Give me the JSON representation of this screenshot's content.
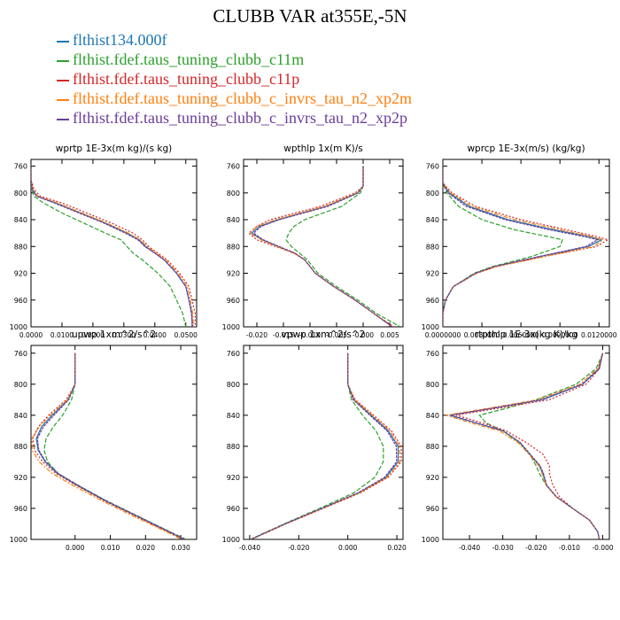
{
  "title": "CLUBB VAR at355E,-5N",
  "legend": [
    {
      "label": "flthist134.000f",
      "color": "#1f77b4"
    },
    {
      "label": "flthist.fdef.taus_tuning_clubb_c11m",
      "color": "#2ca02c"
    },
    {
      "label": "flthist.fdef.taus_tuning_clubb_c11p",
      "color": "#d62728"
    },
    {
      "label": "flthist.fdef.taus_tuning_clubb_c_invrs_tau_n2_xp2m",
      "color": "#ff7f0e"
    },
    {
      "label": "flthist.fdef.taus_tuning_clubb_c_invrs_tau_n2_xp2p",
      "color": "#6a3d9a"
    }
  ],
  "chart_data": [
    {
      "type": "line",
      "title": "wprtp  1E-3x(m kg)/(s kg)",
      "xlim": [
        0.0,
        0.0535
      ],
      "ylim": [
        750,
        1000
      ],
      "x_ticks": [
        0.0,
        0.01,
        0.02,
        0.03,
        0.04,
        0.05
      ],
      "x_tick_labels": [
        "0.0000",
        "0.0100",
        "0.0200",
        "0.0300",
        "0.0400",
        "0.0500"
      ],
      "y_ticks": [
        760,
        800,
        840,
        880,
        920,
        960,
        1000
      ],
      "y_tick_labels": [
        "760",
        "800",
        "840",
        "880",
        "920",
        "960",
        "1000"
      ],
      "y": [
        760,
        780,
        795,
        805,
        815,
        830,
        845,
        860,
        870,
        880,
        890,
        900,
        920,
        940,
        960,
        980,
        1000
      ],
      "series": [
        {
          "x": [
            0.0,
            0.0,
            0.0005,
            0.002,
            0.008,
            0.016,
            0.024,
            0.031,
            0.035,
            0.037,
            0.04,
            0.043,
            0.047,
            0.05,
            0.051,
            0.052,
            0.052
          ]
        },
        {
          "x": [
            0.0,
            0.0,
            0.0002,
            0.001,
            0.004,
            0.01,
            0.017,
            0.024,
            0.029,
            0.031,
            0.033,
            0.036,
            0.041,
            0.045,
            0.047,
            0.049,
            0.05
          ]
        },
        {
          "x": [
            0.0,
            0.0,
            0.001,
            0.003,
            0.01,
            0.018,
            0.026,
            0.033,
            0.036,
            0.038,
            0.041,
            0.044,
            0.048,
            0.051,
            0.052,
            0.053,
            0.053
          ]
        },
        {
          "x": [
            0.0,
            0.0,
            0.0006,
            0.0022,
            0.0085,
            0.0165,
            0.0245,
            0.0315,
            0.0352,
            0.0375,
            0.0405,
            0.0435,
            0.0475,
            0.0505,
            0.0515,
            0.0522,
            0.0525
          ]
        },
        {
          "x": [
            0.0,
            0.0,
            0.0004,
            0.0018,
            0.0075,
            0.0155,
            0.0235,
            0.0305,
            0.0345,
            0.0368,
            0.04,
            0.043,
            0.047,
            0.05,
            0.051,
            0.0518,
            0.0522
          ]
        }
      ]
    },
    {
      "type": "line",
      "title": "wpthlp  1x(m K)/s",
      "xlim": [
        -0.0225,
        0.0075
      ],
      "ylim": [
        750,
        1000
      ],
      "x_ticks": [
        -0.02,
        -0.015,
        -0.01,
        -0.005,
        0.0,
        0.005
      ],
      "x_tick_labels": [
        "-0.020",
        "-0.015",
        "-0.010",
        "-0.005",
        "-0.000",
        "0.005"
      ],
      "y_ticks": [
        760,
        800,
        840,
        880,
        920,
        960,
        1000
      ],
      "y_tick_labels": [
        "760",
        "800",
        "840",
        "880",
        "920",
        "960",
        "1000"
      ],
      "y": [
        760,
        790,
        800,
        820,
        840,
        850,
        860,
        870,
        880,
        890,
        900,
        920,
        940,
        960,
        980,
        1000
      ],
      "series": [
        {
          "x": [
            0.0,
            0.0,
            -0.001,
            -0.007,
            -0.016,
            -0.0195,
            -0.021,
            -0.019,
            -0.016,
            -0.013,
            -0.011,
            -0.009,
            -0.0055,
            -0.0015,
            0.002,
            0.0055
          ]
        },
        {
          "x": [
            0.0,
            0.0,
            -0.0005,
            -0.004,
            -0.011,
            -0.013,
            -0.014,
            -0.0145,
            -0.0135,
            -0.012,
            -0.0105,
            -0.0085,
            -0.005,
            -0.001,
            0.0025,
            0.007
          ]
        },
        {
          "x": [
            0.0,
            0.0,
            -0.0015,
            -0.008,
            -0.0175,
            -0.02,
            -0.0215,
            -0.02,
            -0.0165,
            -0.013,
            -0.011,
            -0.009,
            -0.0055,
            -0.0015,
            0.002,
            0.0058
          ]
        },
        {
          "x": [
            0.0,
            0.0,
            -0.0012,
            -0.0072,
            -0.0165,
            -0.02,
            -0.0213,
            -0.0192,
            -0.0162,
            -0.013,
            -0.011,
            -0.009,
            -0.0055,
            -0.0015,
            0.002,
            0.0055
          ]
        },
        {
          "x": [
            0.0,
            0.0,
            -0.0009,
            -0.0066,
            -0.0158,
            -0.0192,
            -0.0206,
            -0.0188,
            -0.0158,
            -0.0128,
            -0.011,
            -0.009,
            -0.0055,
            -0.0015,
            0.002,
            0.0055
          ]
        }
      ]
    },
    {
      "type": "line",
      "title": "wprcp  1E-3x(m/s) (kg/kg)",
      "xlim": [
        0.0,
        0.0128
      ],
      "ylim": [
        750,
        1000
      ],
      "x_ticks": [
        0.0,
        0.003,
        0.006,
        0.009,
        0.012
      ],
      "x_tick_labels": [
        "0.0000000",
        "0.0030000",
        "0.0060000",
        "0.0090000",
        "0.0120000"
      ],
      "y_ticks": [
        760,
        800,
        840,
        880,
        920,
        960,
        1000
      ],
      "y_tick_labels": [
        "760",
        "800",
        "840",
        "880",
        "920",
        "960",
        "1000"
      ],
      "y": [
        760,
        785,
        800,
        820,
        840,
        855,
        865,
        870,
        880,
        895,
        910,
        920,
        940,
        960,
        980,
        1000
      ],
      "series": [
        {
          "x": [
            0.0,
            0.0,
            0.0005,
            0.002,
            0.005,
            0.0085,
            0.0112,
            0.0122,
            0.0112,
            0.0075,
            0.004,
            0.0025,
            0.0008,
            0.0002,
            0.0,
            0.0
          ]
        },
        {
          "x": [
            0.0,
            0.0,
            0.0003,
            0.0012,
            0.003,
            0.0055,
            0.008,
            0.0092,
            0.009,
            0.0068,
            0.0038,
            0.0024,
            0.0008,
            0.0002,
            0.0,
            0.0
          ]
        },
        {
          "x": [
            0.0,
            0.0,
            0.0007,
            0.0025,
            0.006,
            0.0095,
            0.0118,
            0.0127,
            0.0118,
            0.0078,
            0.0041,
            0.0026,
            0.0008,
            0.0002,
            0.0,
            0.0
          ]
        },
        {
          "x": [
            0.0,
            0.0,
            0.0006,
            0.0022,
            0.0055,
            0.009,
            0.0114,
            0.0123,
            0.0116,
            0.0078,
            0.0041,
            0.0026,
            0.0008,
            0.0002,
            0.0,
            0.0
          ]
        },
        {
          "x": [
            0.0,
            0.0,
            0.0004,
            0.0018,
            0.0048,
            0.0082,
            0.0108,
            0.0119,
            0.011,
            0.0074,
            0.0039,
            0.0025,
            0.0008,
            0.0002,
            0.0,
            0.0
          ]
        }
      ]
    },
    {
      "type": "line",
      "title": "upwp  1xm^2/s^2",
      "xlim": [
        -0.0125,
        0.0345
      ],
      "ylim": [
        750,
        1000
      ],
      "x_ticks": [
        0.0,
        0.01,
        0.02,
        0.03
      ],
      "x_tick_labels": [
        "0.000",
        "0.010",
        "0.020",
        "0.030"
      ],
      "y_ticks": [
        760,
        800,
        840,
        880,
        920,
        960,
        1000
      ],
      "y_tick_labels": [
        "760",
        "800",
        "840",
        "880",
        "920",
        "960",
        "1000"
      ],
      "y": [
        760,
        800,
        820,
        840,
        855,
        870,
        885,
        900,
        915,
        930,
        950,
        970,
        990,
        1000
      ],
      "series": [
        {
          "x": [
            0.0,
            0.0,
            -0.002,
            -0.0065,
            -0.0095,
            -0.011,
            -0.0105,
            -0.0085,
            -0.005,
            0.0005,
            0.0085,
            0.0175,
            0.0265,
            0.031
          ]
        },
        {
          "x": [
            0.0,
            0.0,
            -0.001,
            -0.0035,
            -0.0062,
            -0.0082,
            -0.0088,
            -0.0078,
            -0.0048,
            0.0008,
            0.0088,
            0.0178,
            0.0268,
            0.0315
          ]
        },
        {
          "x": [
            0.0,
            0.0,
            -0.0025,
            -0.0075,
            -0.0105,
            -0.012,
            -0.0115,
            -0.0092,
            -0.0055,
            0.0002,
            0.0082,
            0.0172,
            0.0262,
            0.0308
          ]
        },
        {
          "x": [
            0.0,
            0.0,
            -0.0022,
            -0.007,
            -0.0102,
            -0.0122,
            -0.0122,
            -0.0102,
            -0.0065,
            -0.0008,
            0.0075,
            0.0165,
            0.0258,
            0.0302
          ]
        },
        {
          "x": [
            0.0,
            0.0,
            -0.0018,
            -0.006,
            -0.009,
            -0.0107,
            -0.0103,
            -0.0083,
            -0.0048,
            0.0007,
            0.0087,
            0.0177,
            0.0267,
            0.0312
          ]
        }
      ]
    },
    {
      "type": "line",
      "title": "vpwp  1xm^2/s^2",
      "xlim": [
        -0.0425,
        0.0225
      ],
      "ylim": [
        750,
        1000
      ],
      "x_ticks": [
        -0.04,
        -0.02,
        0.0,
        0.02
      ],
      "x_tick_labels": [
        "-0.040",
        "-0.020",
        "0.000",
        "0.020"
      ],
      "y_ticks": [
        760,
        800,
        840,
        880,
        920,
        960,
        1000
      ],
      "y_tick_labels": [
        "760",
        "800",
        "840",
        "880",
        "920",
        "960",
        "1000"
      ],
      "y": [
        760,
        800,
        820,
        840,
        860,
        880,
        900,
        920,
        940,
        960,
        980,
        1000
      ],
      "series": [
        {
          "x": [
            0.0,
            0.0,
            0.0025,
            0.0095,
            0.0165,
            0.0205,
            0.0205,
            0.0155,
            0.0045,
            -0.0105,
            -0.0255,
            -0.0395
          ]
        },
        {
          "x": [
            0.0,
            0.0,
            0.0015,
            0.006,
            0.0115,
            0.0145,
            0.0145,
            0.011,
            0.0025,
            -0.0115,
            -0.026,
            -0.0398
          ]
        },
        {
          "x": [
            0.0,
            0.0,
            0.003,
            0.0105,
            0.0178,
            0.0218,
            0.0218,
            0.0165,
            0.0052,
            -0.01,
            -0.0252,
            -0.0393
          ]
        },
        {
          "x": [
            0.0,
            0.0,
            0.0027,
            0.01,
            0.0172,
            0.0211,
            0.0212,
            0.016,
            0.0048,
            -0.0103,
            -0.0254,
            -0.0395
          ]
        },
        {
          "x": [
            0.0,
            0.0,
            0.0022,
            0.009,
            0.016,
            0.0198,
            0.0199,
            0.015,
            0.0042,
            -0.0107,
            -0.0257,
            -0.0396
          ]
        }
      ]
    },
    {
      "type": "line",
      "title": "rtpthlp  1E-3x(kg K)/kg",
      "xlim": [
        -0.048,
        0.002
      ],
      "ylim": [
        750,
        1000
      ],
      "x_ticks": [
        -0.04,
        -0.03,
        -0.02,
        -0.01,
        0.0
      ],
      "x_tick_labels": [
        "-0.040",
        "-0.030",
        "-0.020",
        "-0.010",
        "-0.000"
      ],
      "y_ticks": [
        760,
        800,
        840,
        880,
        920,
        960,
        1000
      ],
      "y_tick_labels": [
        "760",
        "800",
        "840",
        "880",
        "920",
        "960",
        "1000"
      ],
      "y": [
        760,
        780,
        800,
        820,
        830,
        840,
        850,
        860,
        875,
        890,
        905,
        915,
        930,
        945,
        960,
        975,
        990,
        1000
      ],
      "series": [
        {
          "x": [
            0.0,
            -0.001,
            -0.006,
            -0.018,
            -0.032,
            -0.046,
            -0.038,
            -0.03,
            -0.025,
            -0.022,
            -0.019,
            -0.018,
            -0.017,
            -0.014,
            -0.009,
            -0.004,
            -0.0015,
            -0.001
          ]
        },
        {
          "x": [
            0.0,
            -0.002,
            -0.008,
            -0.02,
            -0.028,
            -0.037,
            -0.035,
            -0.03,
            -0.025,
            -0.022,
            -0.02,
            -0.019,
            -0.017,
            -0.014,
            -0.009,
            -0.004,
            -0.0015,
            -0.001
          ]
        },
        {
          "x": [
            0.0,
            -0.001,
            -0.005,
            -0.016,
            -0.03,
            -0.044,
            -0.036,
            -0.029,
            -0.023,
            -0.018,
            -0.016,
            -0.016,
            -0.015,
            -0.013,
            -0.009,
            -0.004,
            -0.0015,
            -0.001
          ]
        },
        {
          "x": [
            0.0,
            -0.0015,
            -0.0068,
            -0.0195,
            -0.033,
            -0.047,
            -0.0395,
            -0.031,
            -0.0255,
            -0.0222,
            -0.0192,
            -0.0182,
            -0.017,
            -0.014,
            -0.009,
            -0.004,
            -0.0015,
            -0.001
          ]
        },
        {
          "x": [
            0.0,
            -0.0012,
            -0.0062,
            -0.0185,
            -0.0318,
            -0.0455,
            -0.0378,
            -0.0298,
            -0.0248,
            -0.0218,
            -0.0188,
            -0.0178,
            -0.0168,
            -0.0139,
            -0.009,
            -0.004,
            -0.0015,
            -0.001
          ]
        }
      ]
    }
  ]
}
